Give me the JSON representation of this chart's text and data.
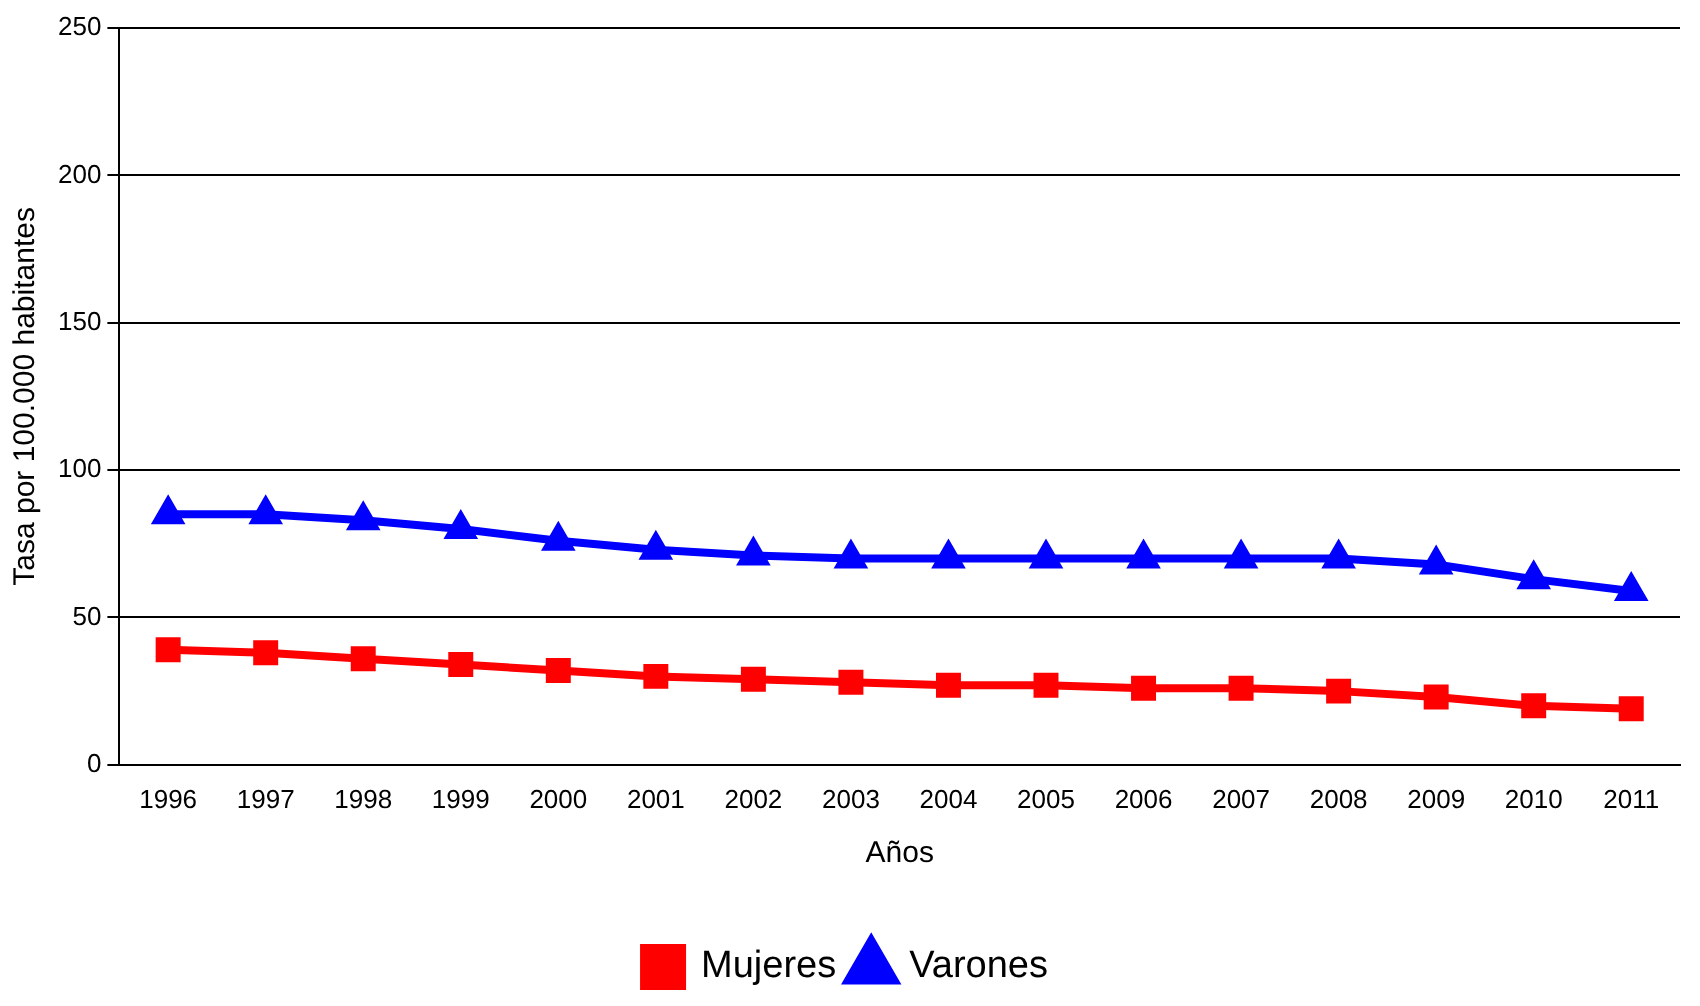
{
  "chart_data": {
    "type": "line",
    "xlabel": "Años",
    "ylabel": "Tasa por 100.000 habitantes",
    "categories": [
      "1996",
      "1997",
      "1998",
      "1999",
      "2000",
      "2001",
      "2002",
      "2003",
      "2004",
      "2005",
      "2006",
      "2007",
      "2008",
      "2009",
      "2010",
      "2011"
    ],
    "series": [
      {
        "name": "Mujeres",
        "color": "#ff0000",
        "marker": "square",
        "values": [
          39,
          38,
          36,
          34,
          32,
          30,
          29,
          28,
          27,
          27,
          26,
          26,
          25,
          23,
          20,
          19
        ]
      },
      {
        "name": "Varones",
        "color": "#0000ff",
        "marker": "triangle",
        "values": [
          85,
          85,
          83,
          80,
          76,
          73,
          71,
          70,
          70,
          70,
          70,
          70,
          70,
          68,
          63,
          59
        ]
      }
    ],
    "ylim": [
      0,
      250
    ],
    "yticks": [
      0,
      50,
      100,
      150,
      200,
      250
    ],
    "grid": "y",
    "legend": "bottom",
    "line_style": "solid"
  }
}
